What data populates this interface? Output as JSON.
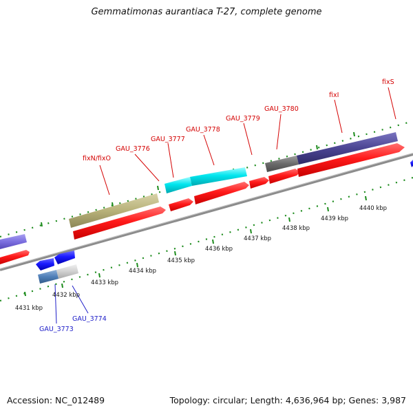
{
  "title": "Gemmatimonas aurantiaca T-27, complete genome",
  "footer": {
    "accession": "Accession: NC_012489",
    "summary": "Topology: circular; Length: 4,636,964 bp; Genes: 3,987"
  },
  "gene_labels_forward": [
    "fixN/fixO",
    "GAU_3776",
    "GAU_3777",
    "GAU_3778",
    "GAU_3779",
    "GAU_3780",
    "fixI",
    "fixS"
  ],
  "gene_labels_reverse": [
    "GAU_3773",
    "GAU_3774"
  ],
  "kbp_labels": [
    "4431 kbp",
    "4432 kbp",
    "4433 kbp",
    "4434 kbp",
    "4435 kbp",
    "4436 kbp",
    "4437 kbp",
    "4438 kbp",
    "4439 kbp",
    "4440 kbp"
  ],
  "colors": {
    "cds_forward": "#ff1a1a",
    "cds_reverse": "#1a1aff",
    "olive_feature": "#b8b27a",
    "cyan_feature": "#00e5ee",
    "purple_feature": "#4b4593",
    "dark_gray_feature": "#6b6b6b",
    "tick_green": "#1a8a1a",
    "backbone": "#8c8c8c"
  }
}
